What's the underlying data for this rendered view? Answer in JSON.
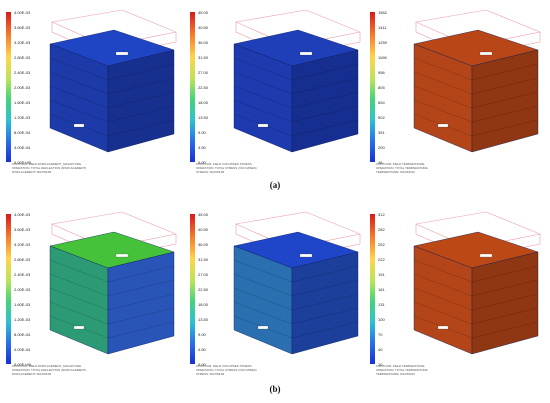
{
  "captions": {
    "a": "(a)",
    "b": "(b)"
  },
  "rows": [
    {
      "panels": [
        {
          "scale": [
            "4.00E-03",
            "3.60E-03",
            "3.20E-03",
            "2.80E-03",
            "2.40E-03",
            "2.00E-03",
            "1.60E-03",
            "1.20E-03",
            "8.00E-04",
            "4.00E-04",
            "0.00E+00"
          ],
          "top_color": "#1f45c4",
          "side_color": "#1c3aa8",
          "side_dark": "#17308f",
          "foot": [
            "CONTOUR: FIELD DISPLACEMENT_MAGNITUDE",
            "OPERATION: TOTAL DEFLECTION (DISPLACEMENT)",
            "DISPLACEMENT: MAXIMUM"
          ]
        },
        {
          "scale": [
            "45.00",
            "40.50",
            "36.00",
            "31.50",
            "27.00",
            "22.50",
            "18.00",
            "13.50",
            "9.00",
            "4.50",
            "0.00"
          ],
          "top_color": "#1f3fb8",
          "side_color": "#1d3aae",
          "side_dark": "#162e8f",
          "foot": [
            "CONTOUR: FIELD VON MISES STRESS",
            "OPERATION: TOTAL STRESS (VON MISES)",
            "STRESS: MAXIMUM"
          ]
        },
        {
          "scale": [
            "1562",
            "1411",
            "1259",
            "1108",
            "956",
            "805",
            "654",
            "502",
            "351",
            "200",
            "48"
          ],
          "top_color": "#b84616",
          "side_color": "#b44518",
          "side_dark": "#8f3612",
          "foot": [
            "CONTOUR: FIELD TEMPERATURE",
            "OPERATION: TOTAL TEMPERATURE",
            "TEMPERATURE: MAXIMUM"
          ]
        }
      ]
    },
    {
      "panels": [
        {
          "scale": [
            "4.00E-03",
            "3.60E-03",
            "3.20E-03",
            "2.80E-03",
            "2.40E-03",
            "2.00E-03",
            "1.60E-03",
            "1.20E-03",
            "8.00E-04",
            "4.00E-04",
            "0.00E+00"
          ],
          "top_color": "#46c23a",
          "side_color": "#2d9a76",
          "side_dark": "#2a55b8",
          "foot": [
            "CONTOUR: FIELD DISPLACEMENT_MAGNITUDE",
            "OPERATION: TOTAL DEFLECTION (DISPLACEMENT)",
            "DISPLACEMENT: MAXIMUM"
          ]
        },
        {
          "scale": [
            "45.00",
            "40.50",
            "36.00",
            "31.50",
            "27.00",
            "22.50",
            "18.00",
            "13.50",
            "9.00",
            "4.50",
            "0.00"
          ],
          "top_color": "#1f46c9",
          "side_color": "#2a6fb0",
          "side_dark": "#1d3f9c",
          "foot": [
            "CONTOUR: FIELD VON MISES STRESS",
            "OPERATION: TOTAL STRESS (VON MISES)",
            "STRESS: MAXIMUM"
          ]
        },
        {
          "scale": [
            "312",
            "282",
            "252",
            "222",
            "191",
            "161",
            "131",
            "100",
            "70",
            "40",
            "10"
          ],
          "top_color": "#bb4815",
          "side_color": "#b44518",
          "side_dark": "#8f3612",
          "foot": [
            "CONTOUR: FIELD TEMPERATURE",
            "OPERATION: TOTAL TEMPERATURE",
            "TEMPERATURE: MAXIMUM"
          ]
        }
      ]
    }
  ]
}
